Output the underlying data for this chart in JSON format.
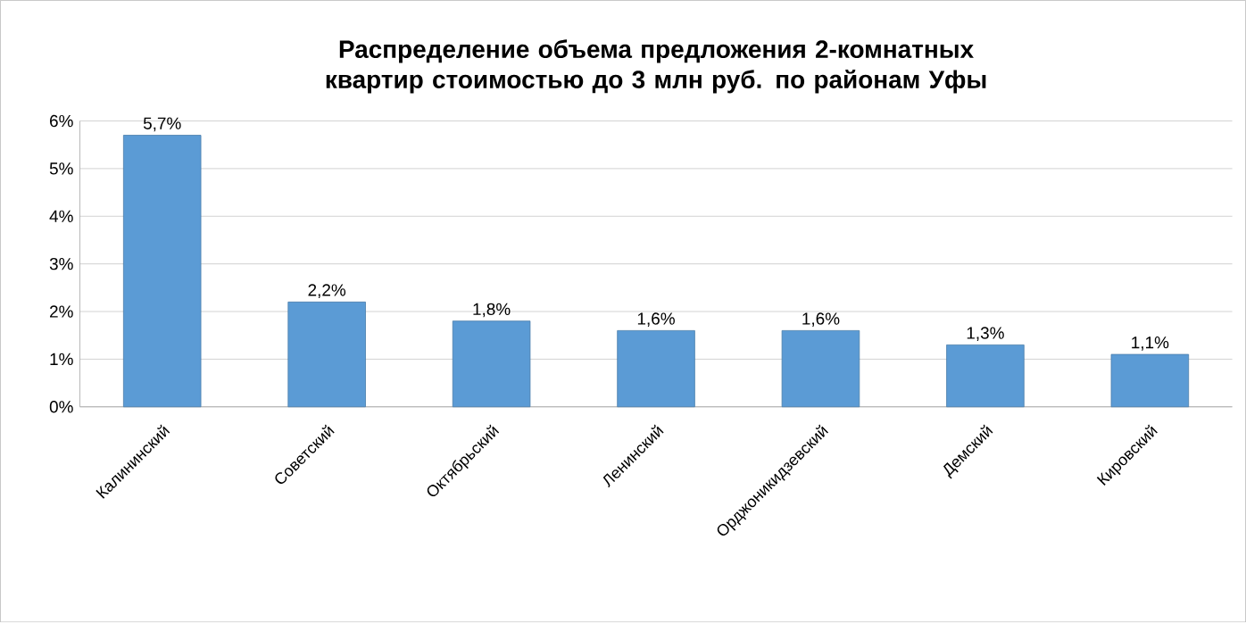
{
  "chart_data": {
    "type": "bar",
    "title": "Распределение объема предложения 2-комнатных квартир стоимостью до 3 млн руб. по районам Уфы",
    "categories": [
      "Калининский",
      "Советский",
      "Октябрьский",
      "Ленинский",
      "Орджоникидзевский",
      "Демский",
      "Кировский"
    ],
    "values": [
      5.7,
      2.2,
      1.8,
      1.6,
      1.6,
      1.3,
      1.1
    ],
    "value_labels": [
      "5,7%",
      "2,2%",
      "1,8%",
      "1,6%",
      "1,6%",
      "1,3%",
      "1,1%"
    ],
    "color": "#5b9bd5",
    "ylim": [
      0,
      6
    ],
    "yticks": [
      {
        "value": 0,
        "label": "0%"
      },
      {
        "value": 1,
        "label": "1%"
      },
      {
        "value": 2,
        "label": "2%"
      },
      {
        "value": 3,
        "label": "3%"
      },
      {
        "value": 4,
        "label": "4%"
      },
      {
        "value": 5,
        "label": "5%"
      },
      {
        "value": 6,
        "label": "6%"
      }
    ],
    "grid": "y"
  }
}
